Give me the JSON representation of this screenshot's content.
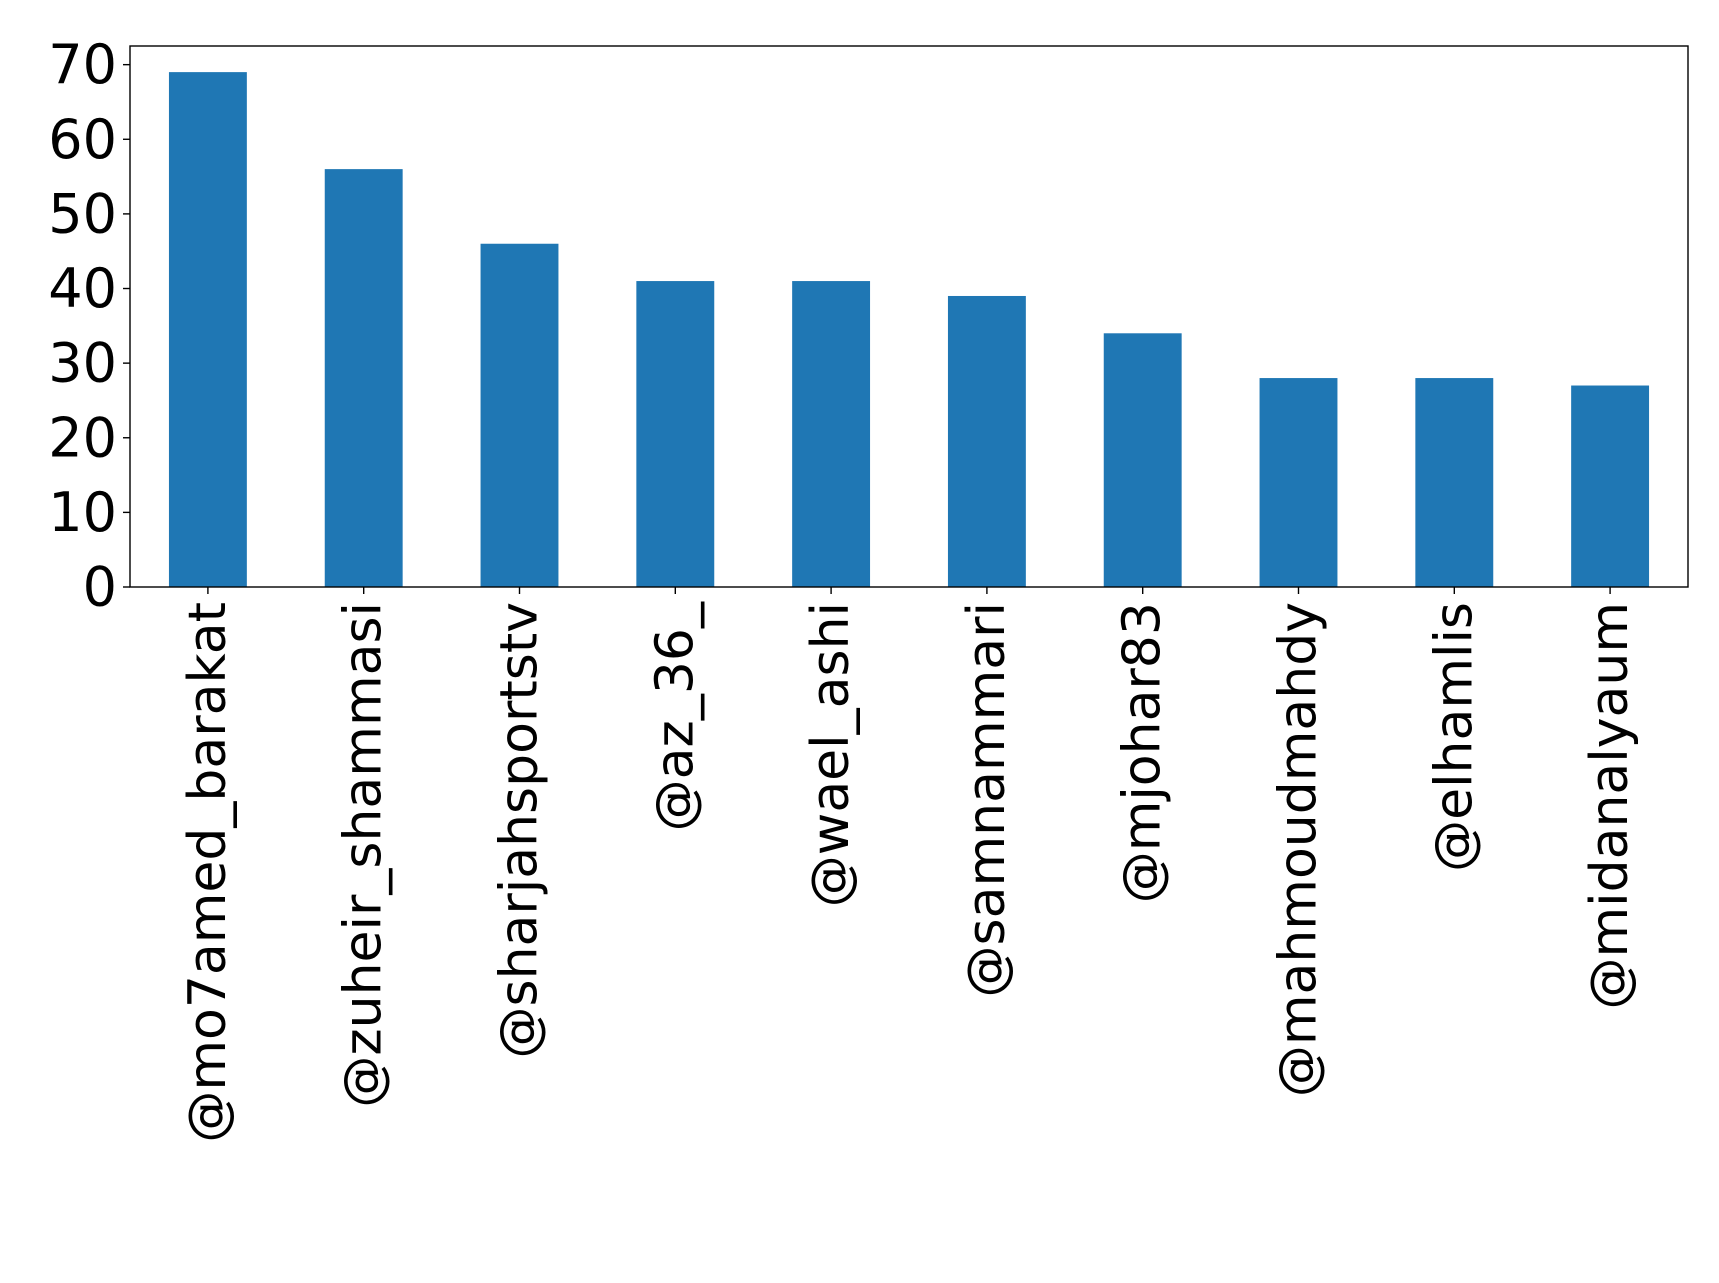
{
  "chart_data": {
    "type": "bar",
    "title": "",
    "xlabel": "",
    "ylabel": "",
    "categories": [
      "@mo7amed_barakat",
      "@zuheir_shammasi",
      "@sharjahsportstv",
      "@az_36_",
      "@wael_ashi",
      "@samnammari",
      "@mjohar83",
      "@mahmoudmahdy",
      "@elhamlis",
      "@midanalyaum"
    ],
    "values": [
      69,
      56,
      46,
      41,
      41,
      39,
      34,
      28,
      28,
      27
    ],
    "ylim": [
      0,
      72.5
    ],
    "yticks": [
      0,
      10,
      20,
      30,
      40,
      50,
      60,
      70
    ],
    "grid": false,
    "legend": "none",
    "bar_color": "#1f77b4"
  }
}
